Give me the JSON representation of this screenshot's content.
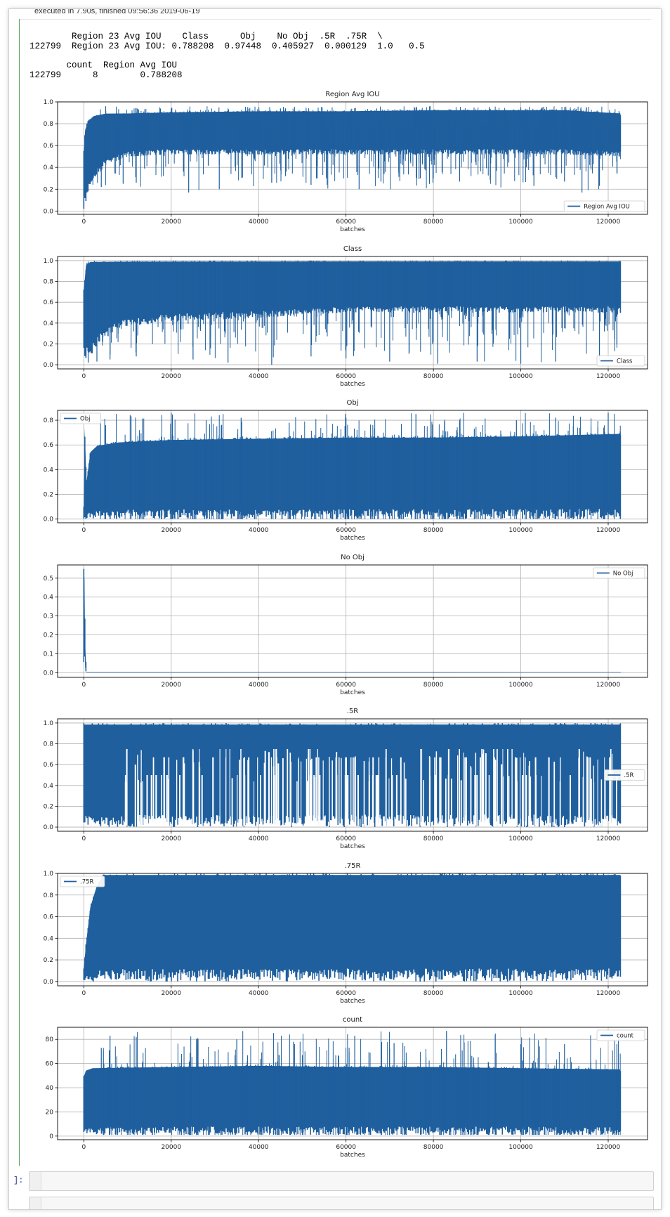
{
  "execution": {
    "status_text": "executed in 7.90s, finished 09:56:36 2019-06-19"
  },
  "dataframe1": {
    "header": "        Region 23 Avg IOU    Class      Obj    No Obj  .5R  .75R  \\",
    "row": "122799  Region 23 Avg IOU: 0.788208  0.97448  0.405927  0.000129  1.0   0.5"
  },
  "dataframe2": {
    "header": "       count  Region Avg IOU",
    "row": "122799      8        0.788208"
  },
  "cells": {
    "prompt": "]:"
  },
  "colors": {
    "series": "#1f5f9e"
  },
  "chart_data": [
    {
      "type": "line",
      "title": "Region Avg IOU",
      "xlabel": "batches",
      "legend": "Region Avg IOU",
      "legend_position": "lower right",
      "grid": true,
      "xlim": [
        -6000,
        129000
      ],
      "xticks": [
        0,
        20000,
        40000,
        60000,
        80000,
        100000,
        120000
      ],
      "ylim": [
        -0.03,
        1.0
      ],
      "yticks": [
        "0.0",
        "0.2",
        "0.4",
        "0.6",
        "0.8",
        "1.0"
      ],
      "x_end": 122799,
      "baseline": 0.78,
      "envelope": {
        "x": [
          0,
          300,
          1000,
          2500,
          5000,
          10000,
          20000,
          40000,
          60000,
          80000,
          100000,
          110000,
          122799
        ],
        "upper": [
          0.55,
          0.75,
          0.84,
          0.88,
          0.9,
          0.9,
          0.91,
          0.92,
          0.92,
          0.93,
          0.93,
          0.93,
          0.9
        ],
        "lower": [
          0.0,
          0.05,
          0.15,
          0.3,
          0.42,
          0.5,
          0.52,
          0.52,
          0.52,
          0.52,
          0.52,
          0.52,
          0.5
        ]
      },
      "spikes": {
        "up": [
          [
            5000,
            0.96
          ],
          [
            20000,
            0.94
          ],
          [
            45000,
            0.94
          ],
          [
            67000,
            0.94
          ],
          [
            100000,
            0.95
          ],
          [
            115000,
            0.95
          ]
        ],
        "down": [
          [
            4000,
            0.22
          ],
          [
            9000,
            0.25
          ],
          [
            12000,
            0.26
          ],
          [
            24000,
            0.17
          ],
          [
            31000,
            0.2
          ],
          [
            43000,
            0.26
          ],
          [
            52000,
            0.24
          ],
          [
            63000,
            0.2
          ],
          [
            68000,
            0.27
          ],
          [
            77000,
            0.3
          ],
          [
            86000,
            0.27
          ],
          [
            103000,
            0.23
          ],
          [
            110000,
            0.27
          ],
          [
            114000,
            0.17
          ],
          [
            118000,
            0.23
          ],
          [
            122000,
            0.35
          ]
        ]
      }
    },
    {
      "type": "line",
      "title": "Class",
      "xlabel": "batches",
      "legend": "Class",
      "legend_position": "lower right",
      "grid": true,
      "xlim": [
        -6000,
        129000
      ],
      "xticks": [
        0,
        20000,
        40000,
        60000,
        80000,
        100000,
        120000
      ],
      "ylim": [
        -0.04,
        1.04
      ],
      "yticks": [
        "0.0",
        "0.2",
        "0.4",
        "0.6",
        "0.8",
        "1.0"
      ],
      "x_end": 122799,
      "baseline": 0.99,
      "envelope": {
        "x": [
          0,
          500,
          1500,
          3000,
          8000,
          20000,
          40000,
          60000,
          80000,
          100000,
          122799
        ],
        "upper": [
          0.72,
          0.97,
          1.0,
          1.0,
          1.0,
          1.0,
          1.0,
          1.0,
          1.0,
          1.0,
          1.0
        ],
        "lower": [
          0.1,
          0.05,
          0.08,
          0.18,
          0.35,
          0.42,
          0.45,
          0.5,
          0.5,
          0.5,
          0.5
        ]
      },
      "spikes": {
        "up": [],
        "down": [
          [
            1000,
            0.02
          ],
          [
            3000,
            0.03
          ],
          [
            6000,
            0.05
          ],
          [
            12000,
            0.08
          ],
          [
            25000,
            0.05
          ],
          [
            33000,
            0.02
          ],
          [
            43000,
            0.0
          ],
          [
            52000,
            0.08
          ],
          [
            60000,
            0.06
          ],
          [
            70000,
            0.03
          ],
          [
            81000,
            0.01
          ],
          [
            90000,
            0.03
          ],
          [
            100000,
            0.01
          ],
          [
            108000,
            0.03
          ],
          [
            118000,
            0.04
          ],
          [
            122000,
            0.2
          ]
        ]
      }
    },
    {
      "type": "line",
      "title": "Obj",
      "xlabel": "batches",
      "legend": "Obj",
      "legend_position": "upper left",
      "grid": true,
      "xlim": [
        -6000,
        129000
      ],
      "xticks": [
        0,
        20000,
        40000,
        60000,
        80000,
        100000,
        120000
      ],
      "ylim": [
        -0.03,
        0.88
      ],
      "yticks": [
        "0.0",
        "0.2",
        "0.4",
        "0.6",
        "0.8"
      ],
      "x_end": 122799,
      "baseline": 0.0,
      "envelope": {
        "x": [
          0,
          200,
          600,
          1500,
          3000,
          8000,
          20000,
          40000,
          60000,
          80000,
          100000,
          122799
        ],
        "upper": [
          0.1,
          0.75,
          0.3,
          0.55,
          0.6,
          0.63,
          0.65,
          0.66,
          0.67,
          0.67,
          0.68,
          0.7
        ],
        "lower": [
          0.0,
          0.0,
          0.0,
          0.0,
          0.0,
          0.0,
          0.0,
          0.0,
          0.0,
          0.0,
          0.0,
          0.0
        ]
      },
      "spikes": {
        "up": [
          [
            5000,
            0.76
          ],
          [
            20000,
            0.86
          ],
          [
            28000,
            0.8
          ],
          [
            36000,
            0.82
          ],
          [
            47000,
            0.78
          ],
          [
            60000,
            0.82
          ],
          [
            76000,
            0.85
          ],
          [
            86000,
            0.8
          ],
          [
            99000,
            0.8
          ],
          [
            108000,
            0.82
          ],
          [
            120000,
            0.86
          ]
        ],
        "down": []
      }
    },
    {
      "type": "line",
      "title": "No Obj",
      "xlabel": "batches",
      "legend": "No Obj",
      "legend_position": "upper right",
      "grid": true,
      "xlim": [
        -6000,
        129000
      ],
      "xticks": [
        0,
        20000,
        40000,
        60000,
        80000,
        100000,
        120000
      ],
      "ylim": [
        -0.025,
        0.57
      ],
      "yticks": [
        "0.0",
        "0.1",
        "0.2",
        "0.3",
        "0.4",
        "0.5"
      ],
      "x_end": 122799,
      "baseline": 0.0,
      "envelope": {
        "x": [
          0,
          150,
          300,
          600,
          122799
        ],
        "upper": [
          0.55,
          0.5,
          0.15,
          0.003,
          0.002
        ],
        "lower": [
          0.0,
          0.2,
          0.0,
          0.0,
          0.0
        ]
      },
      "spikes": {
        "up": [],
        "down": []
      }
    },
    {
      "type": "line",
      "title": ".5R",
      "xlabel": "batches",
      "legend": ".5R",
      "legend_position": "center right",
      "grid": true,
      "xlim": [
        -6000,
        129000
      ],
      "xticks": [
        0,
        20000,
        40000,
        60000,
        80000,
        100000,
        120000
      ],
      "ylim": [
        -0.04,
        1.04
      ],
      "yticks": [
        "0.0",
        "0.2",
        "0.4",
        "0.6",
        "0.8",
        "1.0"
      ],
      "x_end": 122799,
      "baseline": 1.0,
      "envelope": {
        "x": [
          0,
          122799
        ],
        "upper": [
          1.0,
          1.0
        ],
        "lower": [
          0.0,
          0.0
        ]
      },
      "spikes": {
        "up": [],
        "down": []
      },
      "gaps": {
        "x_start": 9000,
        "count": 210,
        "levels": [
          0.5,
          0.67,
          0.75
        ]
      }
    },
    {
      "type": "line",
      "title": ".75R",
      "xlabel": "batches",
      "legend": ".75R",
      "legend_position": "upper left",
      "grid": true,
      "xlim": [
        -6000,
        129000
      ],
      "xticks": [
        0,
        20000,
        40000,
        60000,
        80000,
        100000,
        120000
      ],
      "ylim": [
        -0.04,
        1.0
      ],
      "yticks": [
        "0.0",
        "0.2",
        "0.4",
        "0.6",
        "0.8",
        "1.0"
      ],
      "x_end": 122799,
      "baseline": 0.0,
      "envelope": {
        "x": [
          0,
          500,
          1500,
          3000,
          4500,
          7000,
          122799
        ],
        "upper": [
          0.12,
          0.35,
          0.7,
          0.9,
          1.0,
          1.0,
          1.0
        ],
        "lower": [
          0.0,
          0.0,
          0.0,
          0.0,
          0.0,
          0.0,
          0.0
        ]
      },
      "spikes": {
        "up": [],
        "down": []
      }
    },
    {
      "type": "line",
      "title": "count",
      "xlabel": "batches",
      "legend": "count",
      "legend_position": "upper right",
      "grid": true,
      "xlim": [
        -6000,
        129000
      ],
      "xticks": [
        0,
        20000,
        40000,
        60000,
        80000,
        100000,
        120000
      ],
      "ylim": [
        -3,
        90
      ],
      "yticks": [
        "0",
        "20",
        "40",
        "60",
        "80"
      ],
      "x_end": 122799,
      "baseline": 2.0,
      "envelope": {
        "x": [
          0,
          500,
          2000,
          20000,
          40000,
          60000,
          80000,
          100000,
          122799
        ],
        "upper": [
          50,
          55,
          57,
          58,
          59,
          58,
          58,
          57,
          56
        ],
        "lower": [
          1,
          1,
          1,
          1,
          1,
          1,
          1,
          1,
          1
        ]
      },
      "spikes": {
        "up": [
          [
            4000,
            73
          ],
          [
            6000,
            83
          ],
          [
            12000,
            82
          ],
          [
            26000,
            81
          ],
          [
            35000,
            80
          ],
          [
            48000,
            78
          ],
          [
            62000,
            83
          ],
          [
            71000,
            77
          ],
          [
            83000,
            87
          ],
          [
            100000,
            76
          ],
          [
            110000,
            76
          ],
          [
            122000,
            76
          ]
        ],
        "down": []
      }
    }
  ]
}
